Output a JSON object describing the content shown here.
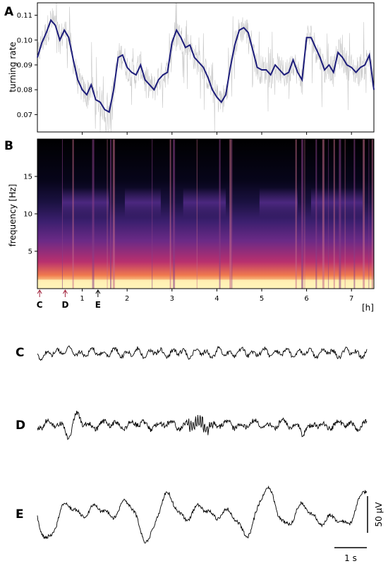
{
  "panels": {
    "a": "A",
    "b": "B",
    "c": "C",
    "d": "D",
    "e": "E"
  },
  "chart_data": [
    {
      "type": "line",
      "panel": "A",
      "ylabel": "turning rate",
      "xlim": [
        0,
        7.5
      ],
      "ylim": [
        0.063,
        0.115
      ],
      "yticks": [
        0.07,
        0.08,
        0.09,
        0.1,
        0.11
      ],
      "ytick_labels": [
        "0.07",
        "0.08",
        "0.09",
        "0.10",
        "0.11"
      ],
      "grid": false,
      "series": [
        {
          "color": "#1c1c7a",
          "x": [
            0.0,
            0.1,
            0.2,
            0.3,
            0.4,
            0.5,
            0.6,
            0.7,
            0.8,
            0.9,
            1.0,
            1.1,
            1.2,
            1.3,
            1.4,
            1.5,
            1.6,
            1.7,
            1.8,
            1.9,
            2.0,
            2.1,
            2.2,
            2.3,
            2.4,
            2.5,
            2.6,
            2.7,
            2.8,
            2.9,
            3.0,
            3.1,
            3.2,
            3.3,
            3.4,
            3.5,
            3.6,
            3.7,
            3.8,
            3.9,
            4.0,
            4.1,
            4.2,
            4.3,
            4.4,
            4.5,
            4.6,
            4.7,
            4.8,
            4.9,
            5.0,
            5.1,
            5.2,
            5.3,
            5.4,
            5.5,
            5.6,
            5.7,
            5.8,
            5.9,
            6.0,
            6.1,
            6.2,
            6.3,
            6.4,
            6.5,
            6.6,
            6.7,
            6.8,
            6.9,
            7.0,
            7.1,
            7.2,
            7.3,
            7.4,
            7.5
          ],
          "y": [
            0.093,
            0.099,
            0.103,
            0.108,
            0.106,
            0.1,
            0.104,
            0.101,
            0.092,
            0.084,
            0.08,
            0.078,
            0.082,
            0.076,
            0.075,
            0.072,
            0.071,
            0.08,
            0.093,
            0.094,
            0.089,
            0.087,
            0.086,
            0.09,
            0.084,
            0.082,
            0.08,
            0.084,
            0.086,
            0.087,
            0.099,
            0.104,
            0.101,
            0.097,
            0.098,
            0.093,
            0.091,
            0.089,
            0.085,
            0.08,
            0.077,
            0.075,
            0.078,
            0.089,
            0.098,
            0.104,
            0.105,
            0.103,
            0.096,
            0.089,
            0.088,
            0.088,
            0.086,
            0.09,
            0.088,
            0.086,
            0.087,
            0.092,
            0.087,
            0.084,
            0.101,
            0.101,
            0.097,
            0.093,
            0.088,
            0.09,
            0.087,
            0.095,
            0.093,
            0.09,
            0.089,
            0.087,
            0.089,
            0.09,
            0.094,
            0.08
          ]
        }
      ]
    },
    {
      "type": "heatmap",
      "panel": "B",
      "ylabel": "frequency [Hz]",
      "xlabel": "[h]",
      "xlim": [
        0,
        7.5
      ],
      "ylim": [
        0,
        20
      ],
      "xticks": [
        1,
        2,
        3,
        4,
        5,
        6,
        7
      ],
      "xtick_labels": [
        "1",
        "2",
        "3",
        "4",
        "5",
        "6",
        "7"
      ],
      "yticks": [
        5,
        10,
        15
      ],
      "ytick_labels": [
        "5",
        "10",
        "15"
      ],
      "markers": [
        {
          "label": "C",
          "x": 0.05
        },
        {
          "label": "D",
          "x": 0.62
        },
        {
          "label": "E",
          "x": 1.35
        }
      ]
    },
    {
      "type": "line",
      "panel": "C",
      "description_free": true
    },
    {
      "type": "line",
      "panel": "D"
    },
    {
      "type": "line",
      "panel": "E",
      "scalebar_y": "50 µV",
      "scalebar_x": "1 s"
    }
  ]
}
